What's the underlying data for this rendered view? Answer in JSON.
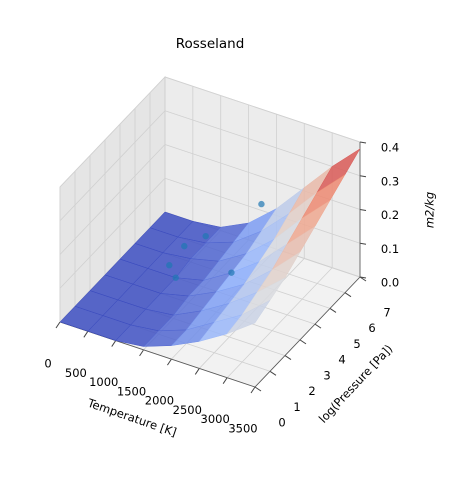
{
  "chart_data": {
    "type": "surface3d",
    "title": "Rosseland",
    "xlabel": "Temperature [K]",
    "ylabel": "log(Pressure [Pa])",
    "zlabel": "m2/kg",
    "colormap": "coolwarm",
    "xlim": [
      0,
      3500
    ],
    "ylim": [
      0,
      7
    ],
    "zlim": [
      0,
      0.4
    ],
    "xticks": [
      0,
      500,
      1000,
      1500,
      2000,
      2500,
      3000,
      3500
    ],
    "yticks": [
      0,
      1,
      2,
      3,
      4,
      5,
      6,
      7
    ],
    "zticks": [
      {
        "value": 0,
        "label": "0.0"
      },
      0.1,
      0.2,
      0.3,
      0.4
    ],
    "grid": true,
    "surface": {
      "x": [
        0,
        500,
        1000,
        1500,
        2000,
        2500,
        3000,
        3500
      ],
      "y": [
        0,
        1,
        2,
        3,
        4,
        5,
        6,
        7
      ],
      "z": [
        [
          0,
          0,
          0,
          0.01,
          0.04,
          0.08,
          0.13,
          0.19
        ],
        [
          0,
          0,
          0,
          0.01,
          0.04,
          0.09,
          0.14,
          0.21
        ],
        [
          0,
          0,
          0,
          0.01,
          0.05,
          0.1,
          0.16,
          0.23
        ],
        [
          0,
          0,
          0,
          0.02,
          0.06,
          0.11,
          0.18,
          0.26
        ],
        [
          0,
          0,
          0,
          0.02,
          0.07,
          0.13,
          0.21,
          0.29
        ],
        [
          0,
          0,
          0.01,
          0.03,
          0.08,
          0.15,
          0.24,
          0.32
        ],
        [
          0,
          0,
          0.01,
          0.04,
          0.1,
          0.18,
          0.27,
          0.35
        ],
        [
          0,
          0,
          0.01,
          0.05,
          0.12,
          0.21,
          0.3,
          0.38
        ]
      ]
    },
    "scatter": {
      "color": "#1f77b4",
      "x": [
        750,
        750,
        1000,
        1000,
        2000,
        2000
      ],
      "y": [
        4.5,
        5.5,
        4,
        6,
        4,
        6
      ],
      "z": [
        0.0,
        0.01,
        0.0,
        0.03,
        0.07,
        0.18
      ]
    }
  }
}
